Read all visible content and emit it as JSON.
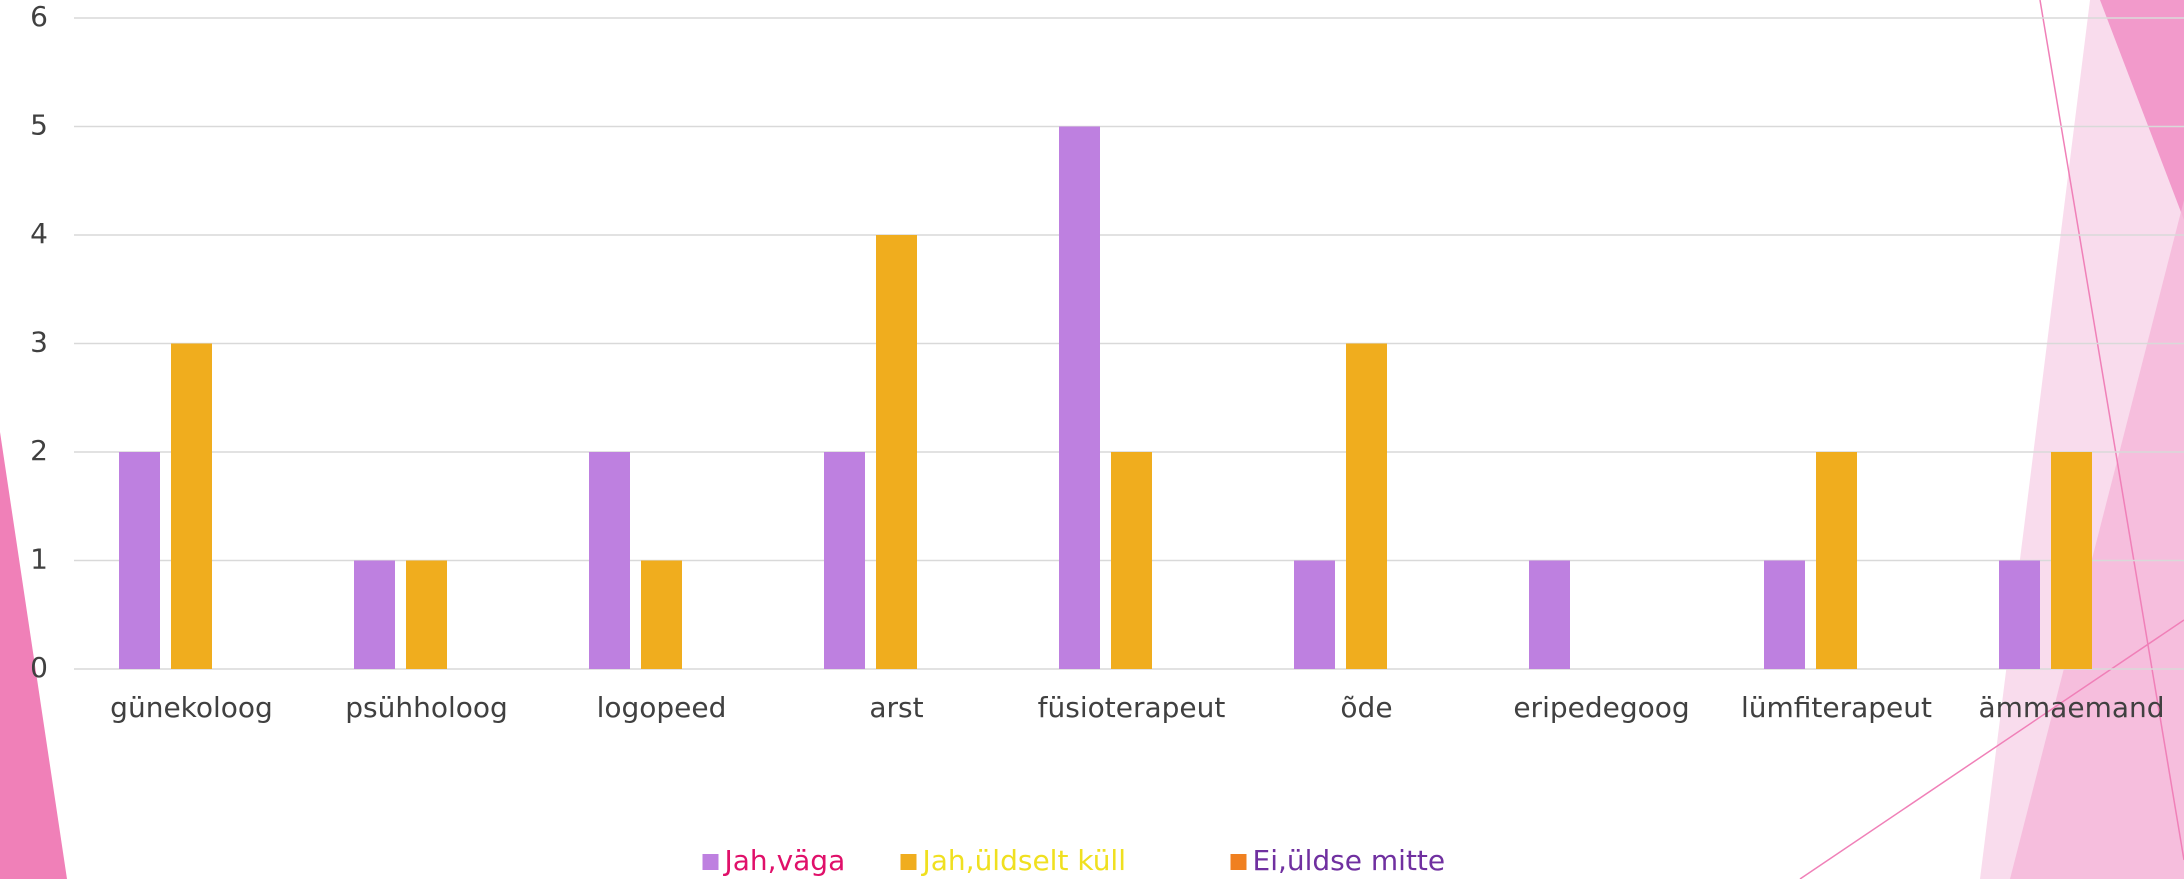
{
  "chart_data": {
    "type": "bar",
    "categories": [
      "günekoloog",
      "psühholoog",
      "logopeed",
      "arst",
      "füsioterapeut",
      "õde",
      "eripedegoog",
      "lümfiterapeut",
      "ämmaemand"
    ],
    "series": [
      {
        "name": "Jah,väga",
        "color": "#be80e0",
        "label_color": "#e0106a",
        "values": [
          2,
          1,
          2,
          2,
          5,
          1,
          1,
          1,
          1
        ]
      },
      {
        "name": "Jah,üldselt küll",
        "color": "#f0ad1e",
        "label_color": "#f0e020",
        "values": [
          3,
          1,
          1,
          4,
          2,
          3,
          0,
          2,
          2
        ]
      },
      {
        "name": "Ei,üldse mitte",
        "color": "#f08020",
        "label_color": "#7030a0",
        "values": [
          0,
          0,
          0,
          0,
          0,
          0,
          0,
          0,
          0
        ]
      }
    ],
    "ylim": [
      0,
      6
    ],
    "yticks": [
      0,
      1,
      2,
      3,
      4,
      5,
      6
    ],
    "grid": true,
    "legend": "bottom"
  }
}
